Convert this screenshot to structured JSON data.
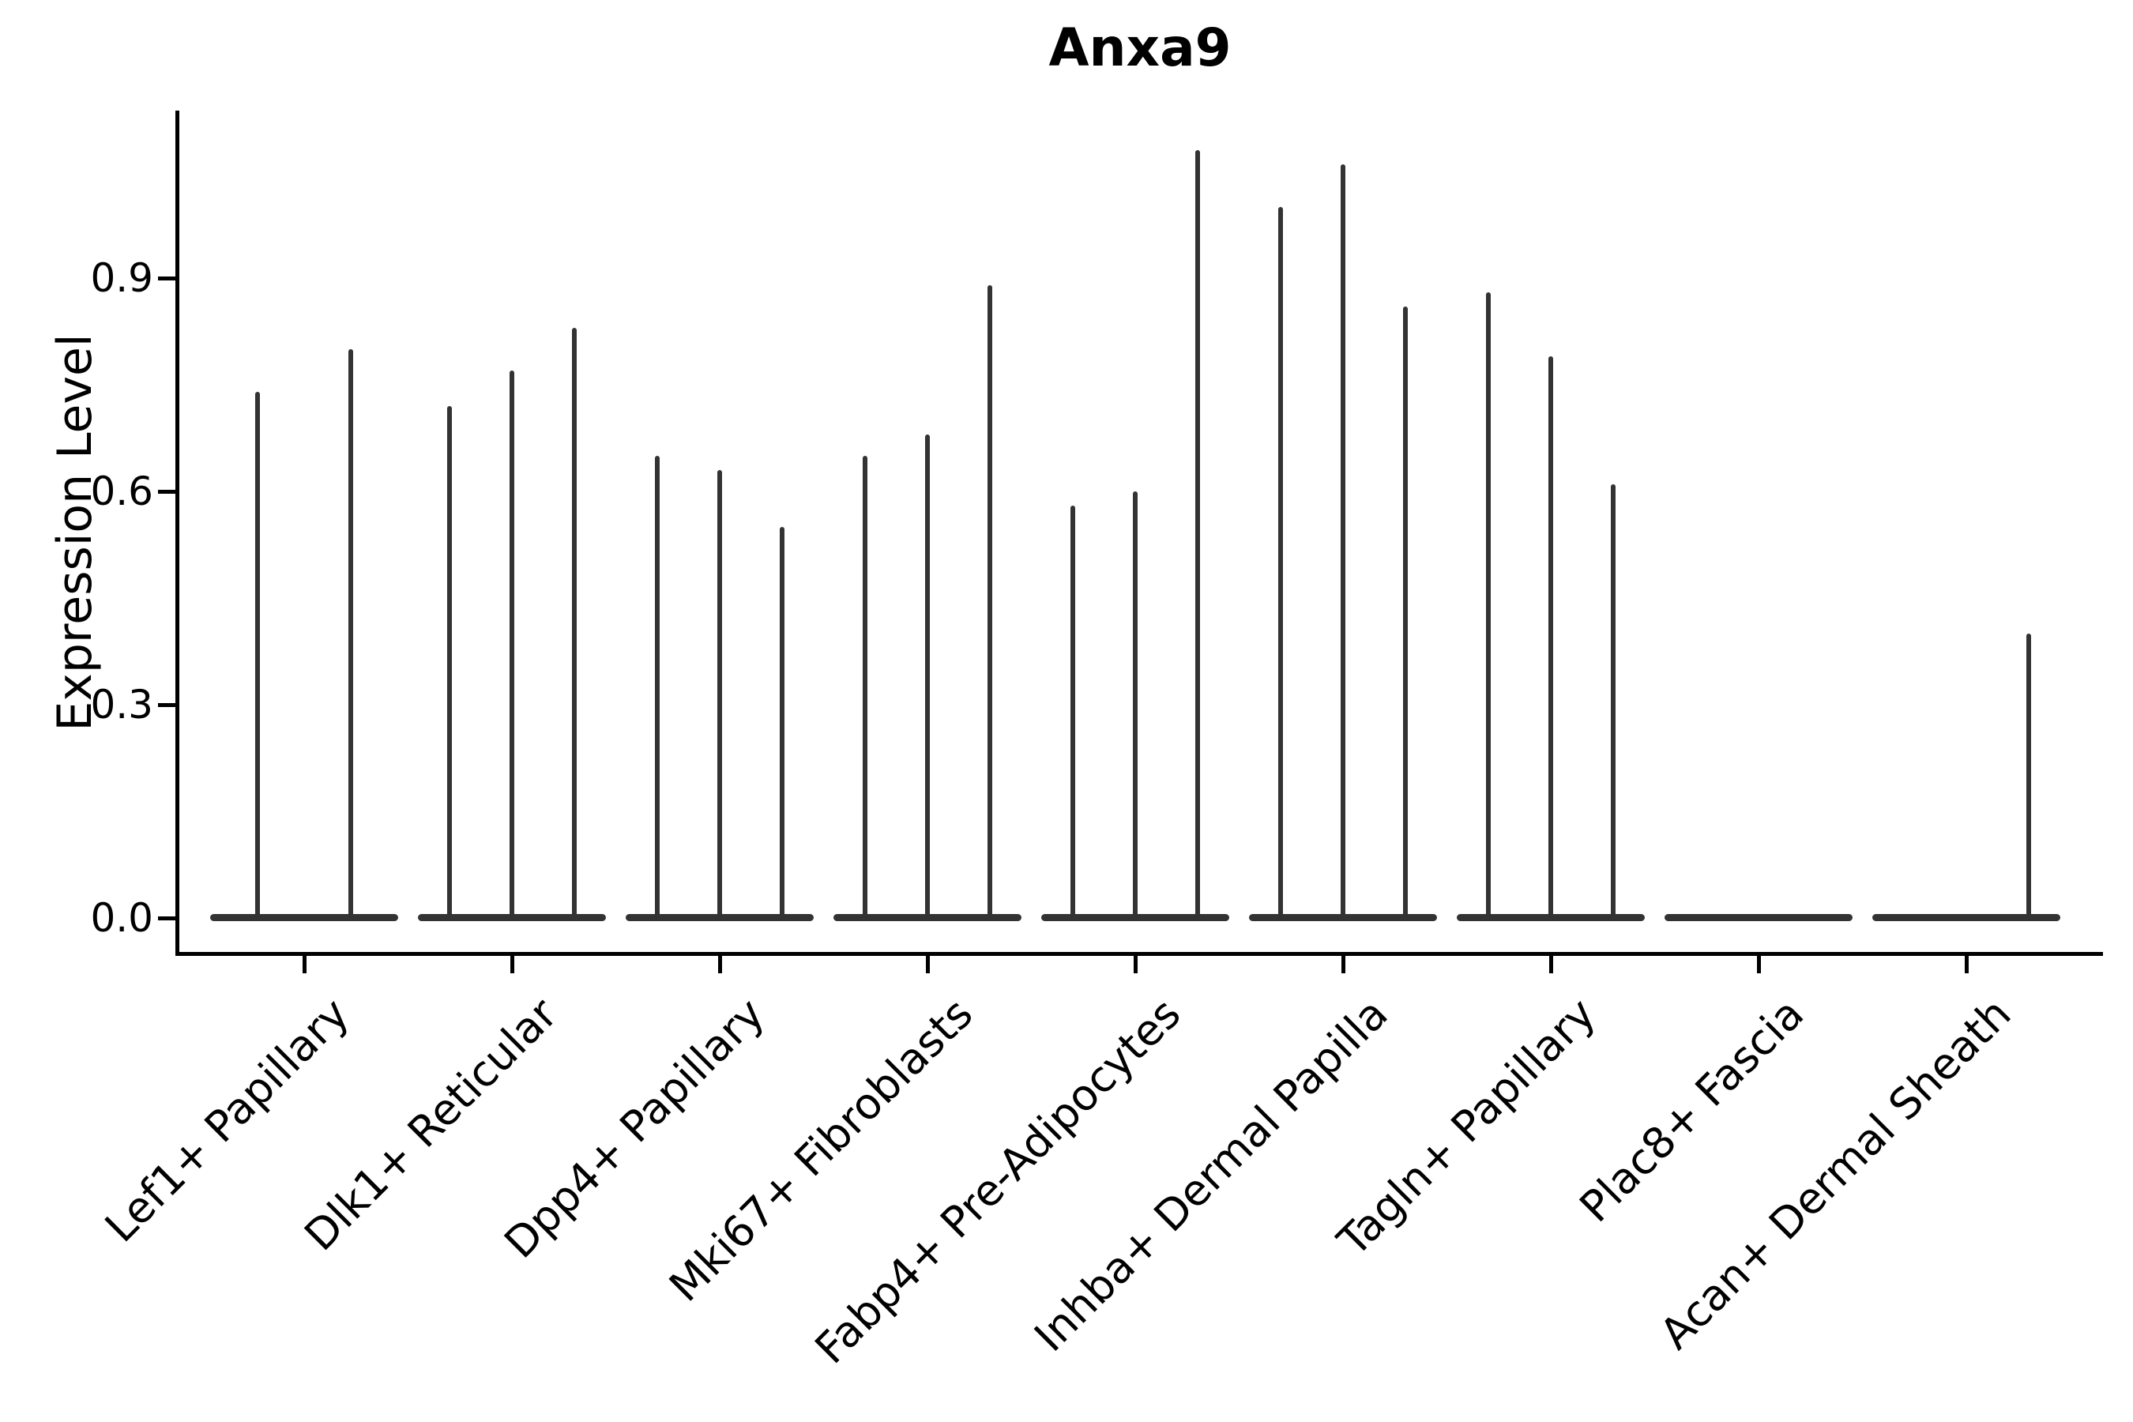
{
  "title": "Anxa9",
  "y_axis": {
    "label": "Expression Level"
  },
  "chart_data": {
    "type": "violin",
    "title": "Anxa9",
    "ylabel": "Expression Level",
    "xlabel": "",
    "ylim": [
      0,
      1.13
    ],
    "yticks": [
      0.0,
      0.3,
      0.6,
      0.9
    ],
    "ytick_labels": [
      "0.0",
      "0.3",
      "0.6",
      "0.9"
    ],
    "grid": false,
    "legend": false,
    "x_label_rotation_deg": 45,
    "note": "Split violin plot of Anxa9 expression; nearly all density sits at 0 (flat base lens per category) with thin spikes reaching each violin's maximum expression value.",
    "categories": [
      "Lef1+ Papillary",
      "Dlk1+ Reticular",
      "Dpp4+ Papillary",
      "Mki67+ Fibroblasts",
      "Fabp4+ Pre-Adipocytes",
      "Inhba+ Dermal Papilla",
      "Tagln+ Papillary",
      "Plac8+ Fascia",
      "Acan+ Dermal Sheath"
    ],
    "groups": [
      {
        "category": "Lef1+ Papillary",
        "violins": [
          {
            "dx": -59,
            "max": 0.74
          },
          {
            "dx": 59,
            "max": 0.8
          }
        ]
      },
      {
        "category": "Dlk1+ Reticular",
        "violins": [
          {
            "dx": -79,
            "max": 0.72
          },
          {
            "dx": 0,
            "max": 0.77
          },
          {
            "dx": 79,
            "max": 0.83
          }
        ]
      },
      {
        "category": "Dpp4+ Papillary",
        "violins": [
          {
            "dx": -79,
            "max": 0.65
          },
          {
            "dx": 0,
            "max": 0.63
          },
          {
            "dx": 79,
            "max": 0.55
          }
        ]
      },
      {
        "category": "Mki67+ Fibroblasts",
        "violins": [
          {
            "dx": -79,
            "max": 0.65
          },
          {
            "dx": 0,
            "max": 0.68
          },
          {
            "dx": 79,
            "max": 0.89
          }
        ]
      },
      {
        "category": "Fabp4+ Pre-Adipocytes",
        "violins": [
          {
            "dx": -79,
            "max": 0.58
          },
          {
            "dx": 0,
            "max": 0.6
          },
          {
            "dx": 79,
            "max": 1.08
          }
        ]
      },
      {
        "category": "Inhba+ Dermal Papilla",
        "violins": [
          {
            "dx": -79,
            "max": 1.0
          },
          {
            "dx": 0,
            "max": 1.06
          },
          {
            "dx": 79,
            "max": 0.86
          }
        ]
      },
      {
        "category": "Tagln+ Papillary",
        "violins": [
          {
            "dx": -79,
            "max": 0.88
          },
          {
            "dx": 0,
            "max": 0.79
          },
          {
            "dx": 79,
            "max": 0.61
          }
        ]
      },
      {
        "category": "Plac8+ Fascia",
        "violins": []
      },
      {
        "category": "Acan+ Dermal Sheath",
        "violins": [
          {
            "dx": 79,
            "max": 0.4
          }
        ]
      }
    ],
    "colors": {
      "violin": "#333333",
      "axis": "#000000",
      "text": "#000000",
      "background": "#ffffff"
    }
  }
}
